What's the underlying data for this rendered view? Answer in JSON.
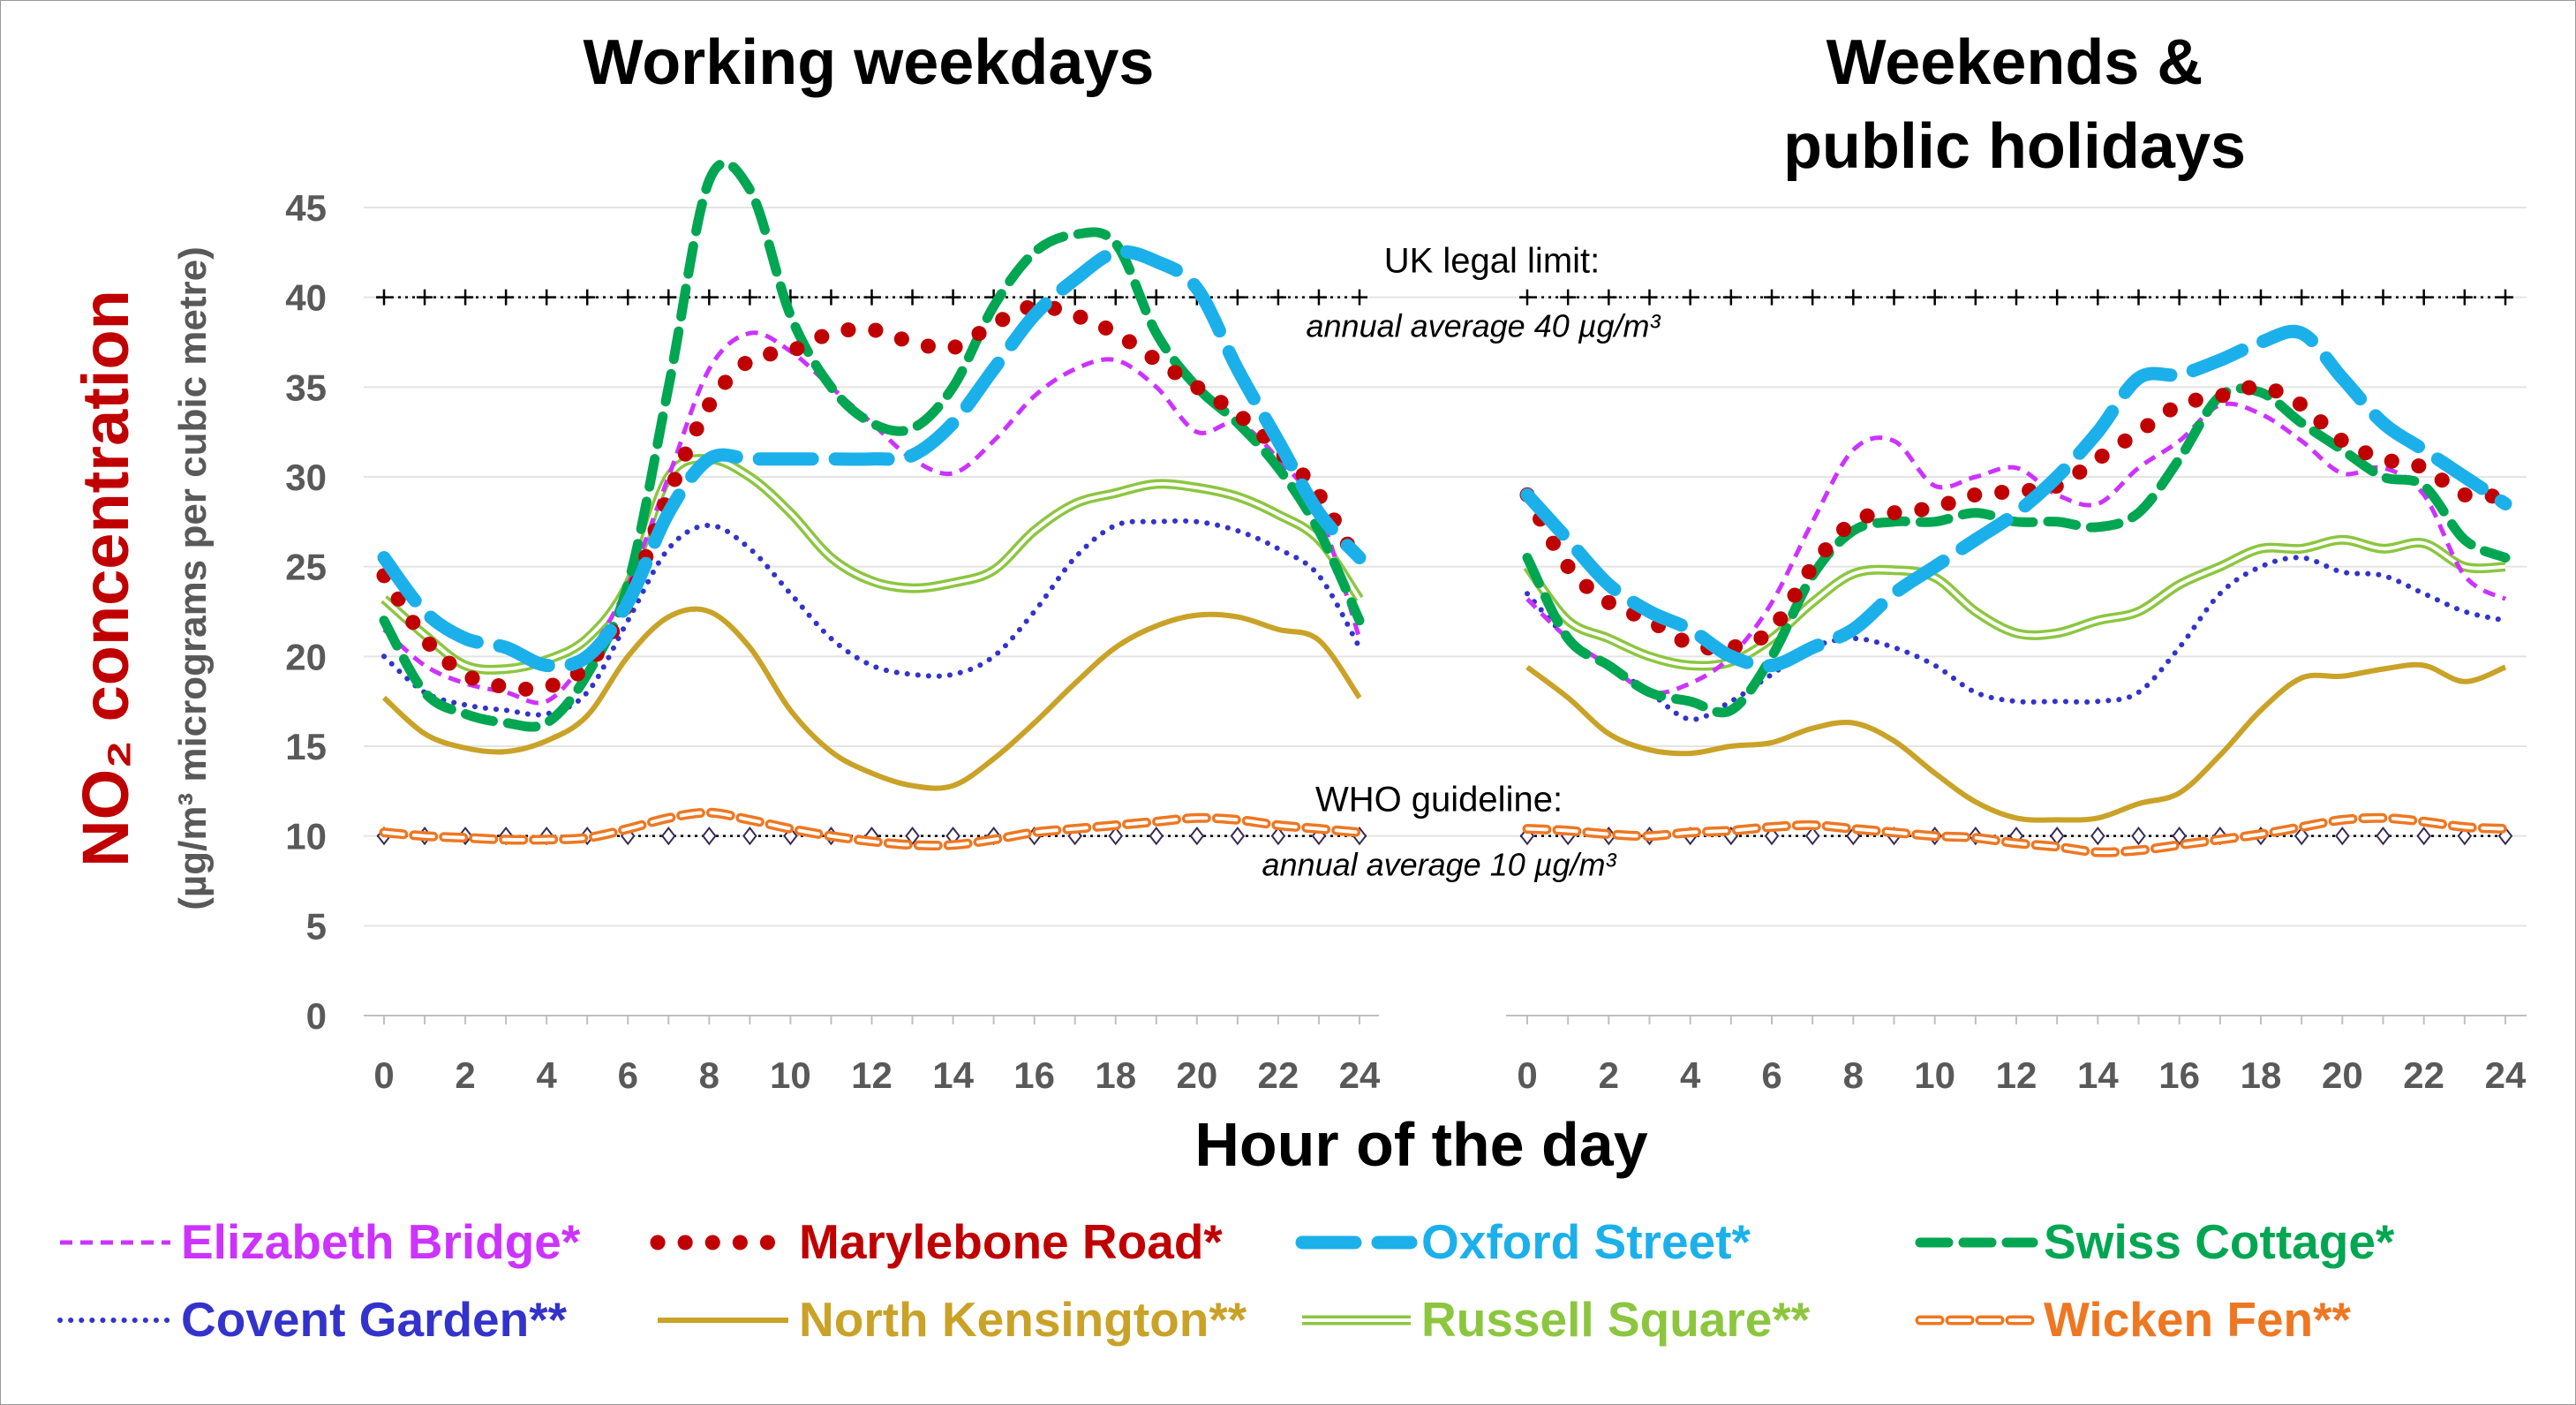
{
  "chart_data": {
    "type": "line",
    "ylabel": "NO₂ concentration",
    "ylabel_units": "(µg/m³ micrograms per cubic metre)",
    "xlabel": "Hour of the day",
    "ylim": [
      0,
      47
    ],
    "yticks": [
      0,
      5,
      10,
      15,
      20,
      25,
      30,
      35,
      40,
      45
    ],
    "xticks": [
      0,
      2,
      4,
      6,
      8,
      10,
      12,
      14,
      16,
      18,
      20,
      22,
      24
    ],
    "grid": "horizontal",
    "legend_position": "bottom",
    "reference_lines": [
      {
        "name": "uk",
        "value": 40,
        "title": "UK legal limit:",
        "subtitle": "annual average 40 µg/m³",
        "marker": "plus"
      },
      {
        "name": "who",
        "value": 10,
        "title": "WHO guideline:",
        "subtitle": "annual average 10 µg/m³",
        "marker": "diamond"
      }
    ],
    "panels": [
      {
        "key": "weekday",
        "title_lines": [
          "Working weekdays"
        ]
      },
      {
        "key": "weekend",
        "title_lines": [
          "Weekends &",
          "public holidays"
        ]
      }
    ],
    "series": [
      {
        "name": "Elizabeth Bridge*",
        "color": "#cc33ff",
        "style": "dash-thin",
        "weekday": [
          21.5,
          19.5,
          18.5,
          18,
          17.5,
          20,
          24,
          30,
          36,
          38,
          37,
          35,
          33,
          31,
          30.2,
          32,
          34.5,
          36,
          36.5,
          35,
          32.5,
          33,
          31,
          28,
          21
        ],
        "weekend": [
          23.2,
          21,
          19.5,
          18,
          18.5,
          20,
          23,
          27.5,
          31.5,
          32,
          29.5,
          30,
          30.5,
          29,
          28.5,
          30.5,
          32,
          34,
          33.5,
          32,
          30.2,
          30.5,
          29,
          24.5,
          23.2
        ]
      },
      {
        "name": "Marylebone Road*",
        "color": "#c00000",
        "style": "dots-big",
        "weekday": [
          24.5,
          21,
          19,
          18.3,
          18.3,
          19.5,
          23,
          29,
          34,
          36.5,
          37,
          38,
          38.2,
          37.5,
          37.2,
          38.5,
          39.5,
          39,
          38,
          36.5,
          35,
          33.5,
          31.5,
          29,
          25
        ],
        "weekend": [
          29,
          25,
          23,
          22,
          20.7,
          20.5,
          21.5,
          25,
          27.5,
          28,
          28.3,
          29,
          29.2,
          29.5,
          31,
          32.5,
          34,
          34.5,
          35,
          34,
          32,
          31,
          30.5,
          29,
          29
        ]
      },
      {
        "name": "Oxford Street*",
        "color": "#1cb0ea",
        "style": "dash-thick",
        "weekday": [
          25.5,
          22.5,
          21,
          20.5,
          19.5,
          20,
          23,
          28,
          31,
          31,
          31,
          31,
          31,
          31.2,
          33,
          36,
          39,
          41,
          42.5,
          42,
          40.5,
          36,
          32,
          28,
          25.5
        ],
        "weekend": [
          29,
          26.5,
          24,
          22.5,
          21.5,
          20,
          19.5,
          20.5,
          21.5,
          23.5,
          25,
          26.5,
          28,
          30,
          32.5,
          35.5,
          35.7,
          36.5,
          37.5,
          38,
          35.5,
          33,
          31.5,
          30,
          28.5
        ]
      },
      {
        "name": "Swiss Cottage*",
        "color": "#00a651",
        "style": "dash-green",
        "weekday": [
          22,
          18,
          16.8,
          16.3,
          16.3,
          19,
          24,
          35,
          46.5,
          46,
          39,
          35,
          33,
          32.7,
          35,
          39.5,
          42.5,
          43.5,
          43,
          38,
          35,
          33,
          30.5,
          27,
          22
        ],
        "weekend": [
          25.5,
          21,
          19.5,
          18,
          17.5,
          17,
          20,
          24.5,
          27,
          27.5,
          27.5,
          28,
          27.5,
          27.5,
          27.2,
          28,
          31,
          34.5,
          34.7,
          33,
          31.5,
          30,
          29.5,
          26.5,
          25.5
        ]
      },
      {
        "name": "Covent Garden**",
        "color": "#3333cc",
        "style": "dots-small",
        "weekday": [
          20,
          18,
          17.3,
          17,
          16.8,
          18,
          22,
          26,
          27.3,
          26,
          23.5,
          21,
          19.5,
          19,
          19,
          20,
          22.5,
          25.5,
          27.3,
          27.5,
          27.5,
          27,
          26,
          24.5,
          20.5
        ],
        "weekend": [
          23.5,
          21,
          19.5,
          18,
          16.5,
          17.5,
          19,
          20.5,
          21,
          20.5,
          19.5,
          18,
          17.5,
          17.5,
          17.5,
          18,
          20.5,
          23.5,
          25,
          25.5,
          24.7,
          24.5,
          23.5,
          22.5,
          22
        ]
      },
      {
        "name": "North Kensington**",
        "color": "#c9a227",
        "style": "solid",
        "weekday": [
          17.7,
          15.7,
          14.9,
          14.7,
          15.3,
          16.7,
          20,
          22.2,
          22.5,
          20.5,
          17,
          14.7,
          13.5,
          12.8,
          12.8,
          14.3,
          16.3,
          18.5,
          20.5,
          21.7,
          22.3,
          22.2,
          21.5,
          20.9,
          17.7
        ],
        "weekend": [
          19.4,
          17.7,
          15.7,
          14.8,
          14.6,
          15,
          15.2,
          16,
          16.3,
          15.3,
          13.5,
          11.9,
          11,
          10.9,
          11,
          11.8,
          12.4,
          14.5,
          17,
          18.8,
          18.9,
          19.3,
          19.5,
          18.6,
          19.4
        ]
      },
      {
        "name": "Russell Square**",
        "color": "#8cc63f",
        "style": "double",
        "weekday": [
          23.2,
          21.2,
          19.5,
          19.3,
          19.8,
          21,
          24,
          30,
          31,
          30,
          28,
          25.5,
          24.2,
          23.8,
          24.1,
          24.8,
          27,
          28.5,
          29.1,
          29.6,
          29.4,
          28.9,
          27.9,
          26.5,
          23.2
        ],
        "weekend": [
          25,
          22,
          21,
          20,
          19.5,
          19.7,
          21,
          23,
          24.6,
          24.8,
          24.4,
          22.5,
          21.3,
          21.3,
          22,
          22.5,
          24,
          25,
          26,
          26,
          26.5,
          26,
          26.3,
          25,
          25
        ]
      },
      {
        "name": "Wicken Fen**",
        "color": "#ee7722",
        "style": "dash-hollow",
        "weekday": [
          10.2,
          10,
          9.9,
          9.8,
          9.8,
          9.9,
          10.4,
          11,
          11.3,
          10.9,
          10.4,
          10,
          9.7,
          9.5,
          9.5,
          9.8,
          10.2,
          10.4,
          10.6,
          10.8,
          11,
          10.9,
          10.6,
          10.4,
          10.2
        ],
        "weekend": [
          10.4,
          10.3,
          10.1,
          10,
          10.2,
          10.3,
          10.5,
          10.6,
          10.4,
          10.2,
          10,
          9.9,
          9.6,
          9.4,
          9.1,
          9.2,
          9.5,
          9.8,
          10.1,
          10.5,
          10.9,
          11,
          10.8,
          10.5,
          10.4
        ]
      }
    ]
  }
}
